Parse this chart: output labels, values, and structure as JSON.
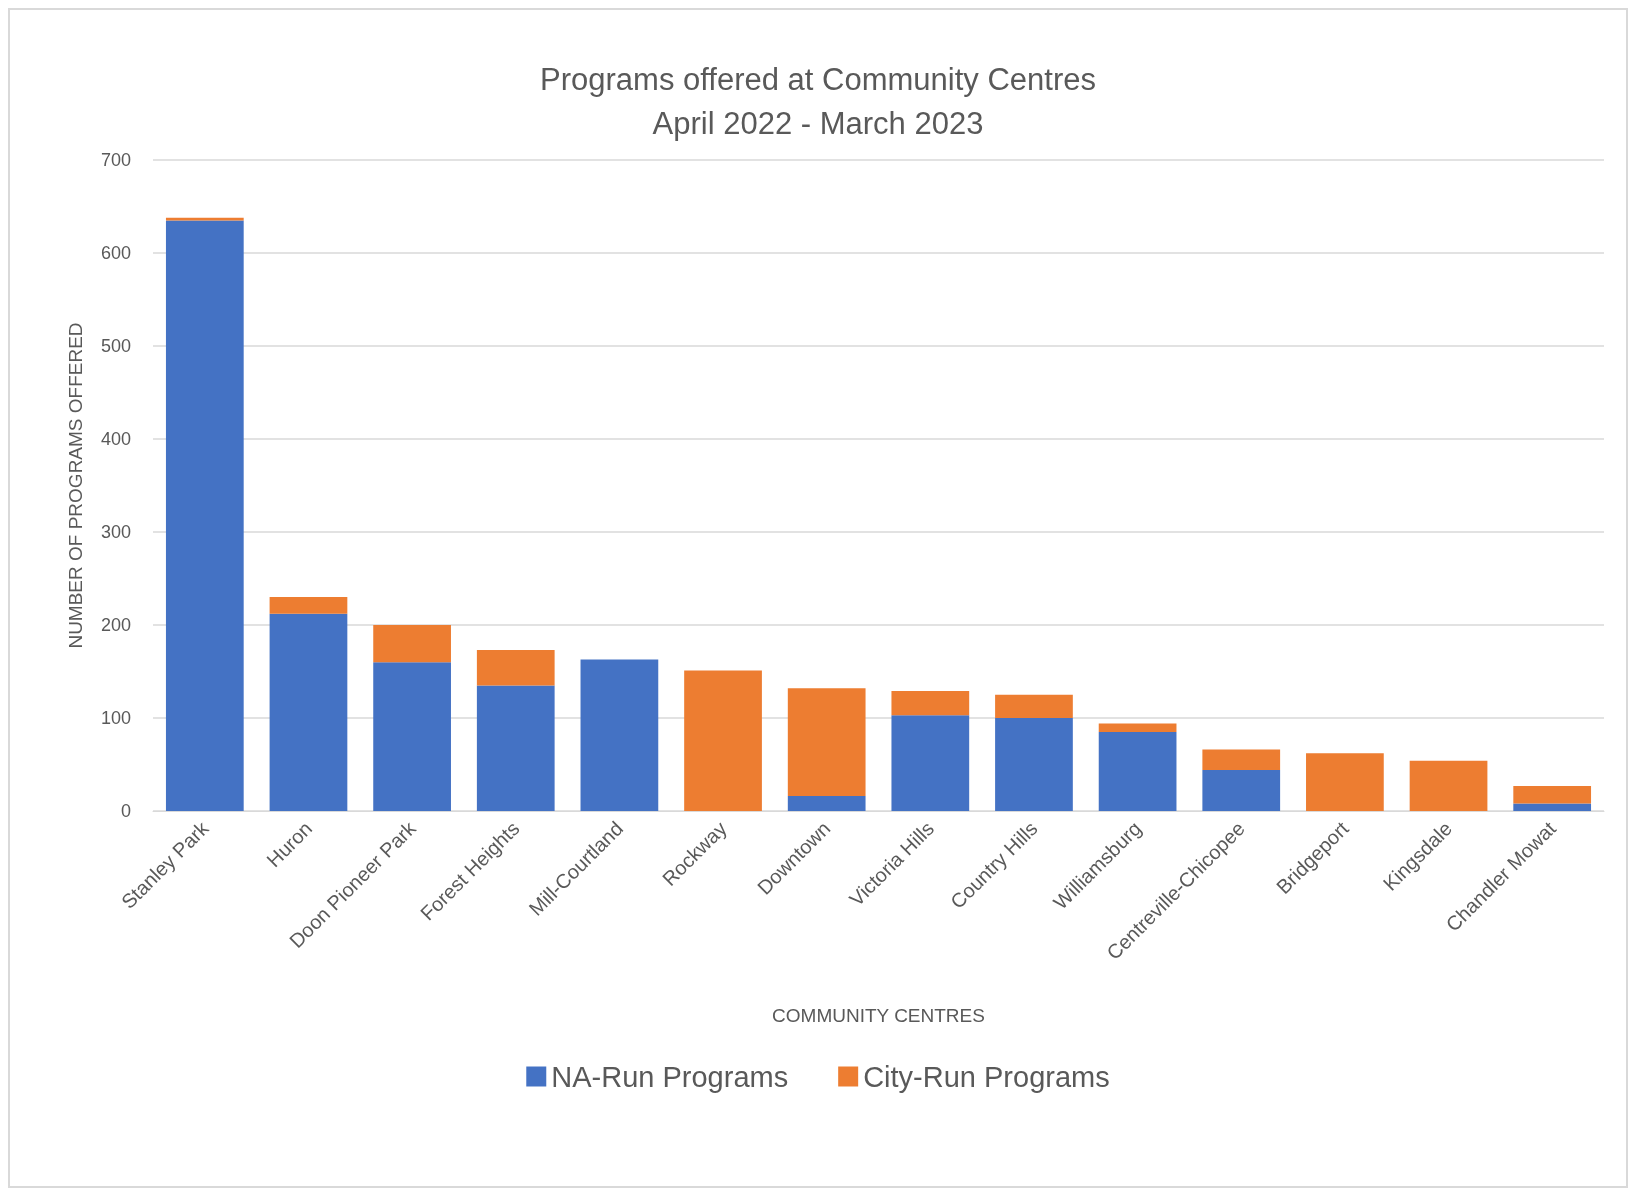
{
  "chart_data": {
    "type": "bar",
    "title": "Programs offered at Community Centres\nApril 2022 - March 2023",
    "xlabel": "COMMUNITY CENTRES",
    "ylabel": "NUMBER OF PROGRAMS OFFERED",
    "categories": [
      "Stanley Park",
      "Huron",
      "Doon Pioneer Park",
      "Forest Heights",
      "Mill-Courtland",
      "Rockway",
      "Downtown",
      "Victoria Hills",
      "Country Hills",
      "Williamsburg",
      "Centreville-Chicopee",
      "Bridgeport",
      "Kingsdale",
      "Chandler Mowat"
    ],
    "series": [
      {
        "name": "NA-Run Programs",
        "color": "#4472c4",
        "values": [
          635,
          212,
          160,
          135,
          163,
          0,
          16,
          103,
          100,
          85,
          44,
          0,
          0,
          8
        ]
      },
      {
        "name": "City-Run Programs",
        "color": "#ed7d31",
        "values": [
          3,
          18,
          40,
          38,
          0,
          151,
          116,
          26,
          25,
          9,
          22,
          62,
          54,
          19
        ]
      }
    ],
    "stacked": true,
    "ylim": [
      0,
      700
    ],
    "yticks": [
      0,
      100,
      200,
      300,
      400,
      500,
      600,
      700
    ],
    "grid": "y",
    "legend": "bottom"
  }
}
